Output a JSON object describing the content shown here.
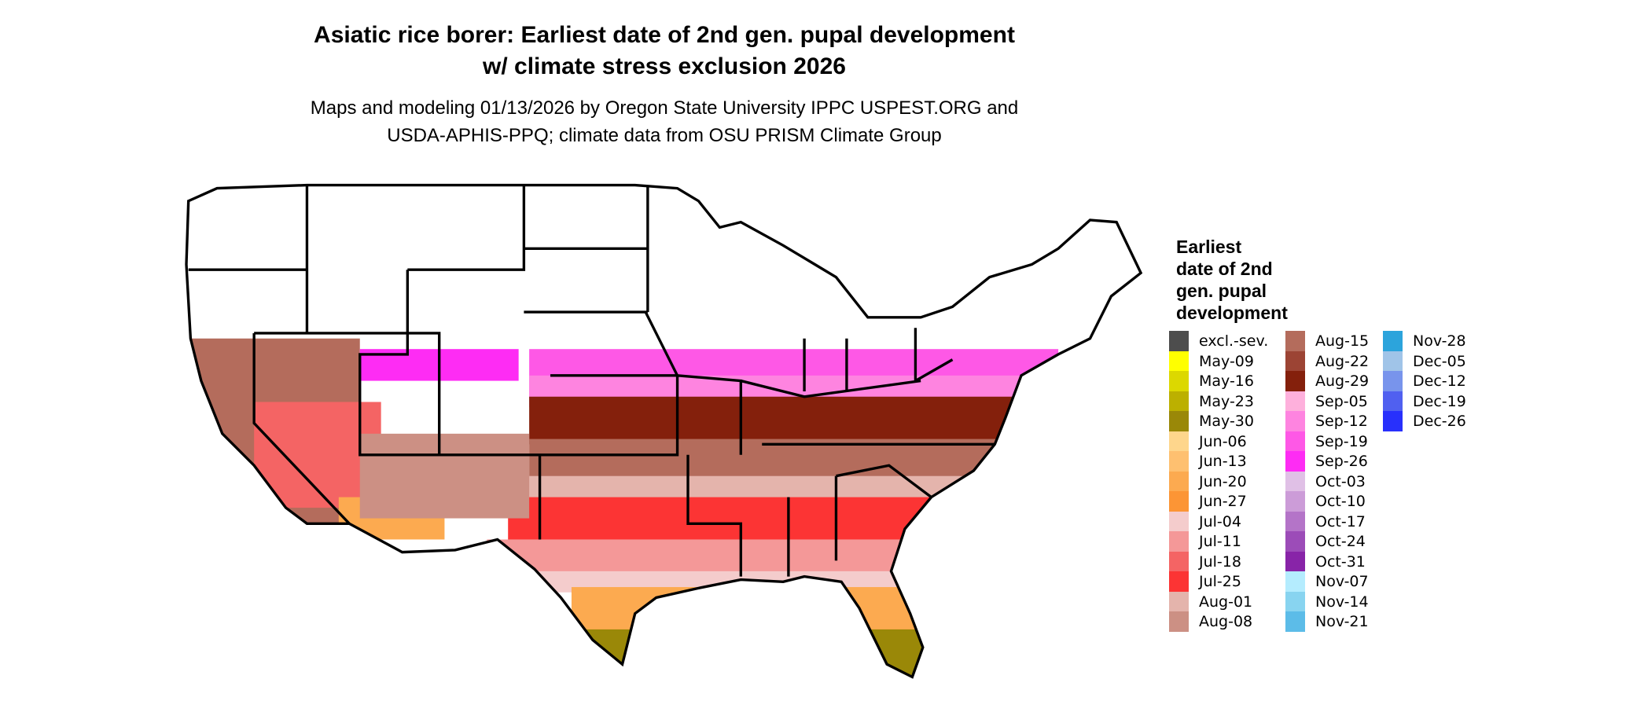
{
  "title_line1": "Asiatic rice borer: Earliest date of 2nd gen. pupal development",
  "title_line2": "w/ climate stress exclusion 2026",
  "subtitle_line1": "Maps and modeling 01/13/2026 by Oregon State University IPPC USPEST.ORG and",
  "subtitle_line2": "USDA-APHIS-PPQ; climate data from OSU PRISM Climate Group",
  "legend": {
    "title_lines": [
      "Earliest",
      "date of 2nd",
      "gen. pupal",
      "development"
    ],
    "items": [
      {
        "label": "excl.-sev.",
        "color": "#4d4d4d"
      },
      {
        "label": "May-09",
        "color": "#ffff00"
      },
      {
        "label": "May-16",
        "color": "#dcd800"
      },
      {
        "label": "May-23",
        "color": "#bcb000"
      },
      {
        "label": "May-30",
        "color": "#9a8808"
      },
      {
        "label": "Jun-06",
        "color": "#fed68c"
      },
      {
        "label": "Jun-13",
        "color": "#fec070"
      },
      {
        "label": "Jun-20",
        "color": "#fcaa50"
      },
      {
        "label": "Jun-27",
        "color": "#fc9535"
      },
      {
        "label": "Jul-04",
        "color": "#f4cccc"
      },
      {
        "label": "Jul-11",
        "color": "#f49898"
      },
      {
        "label": "Jul-18",
        "color": "#f46464"
      },
      {
        "label": "Jul-25",
        "color": "#fc3434"
      },
      {
        "label": "Aug-01",
        "color": "#e4b4ac"
      },
      {
        "label": "Aug-08",
        "color": "#cc9084"
      },
      {
        "label": "Aug-15",
        "color": "#b46c5c"
      },
      {
        "label": "Aug-22",
        "color": "#9c4434"
      },
      {
        "label": "Aug-29",
        "color": "#84200c"
      },
      {
        "label": "Sep-05",
        "color": "#feb0dc"
      },
      {
        "label": "Sep-12",
        "color": "#fe84e0"
      },
      {
        "label": "Sep-19",
        "color": "#fe58e6"
      },
      {
        "label": "Sep-26",
        "color": "#fe2cf4"
      },
      {
        "label": "Oct-03",
        "color": "#e0c0e6"
      },
      {
        "label": "Oct-10",
        "color": "#cc9cd8"
      },
      {
        "label": "Oct-17",
        "color": "#b474c8"
      },
      {
        "label": "Oct-24",
        "color": "#9c4cb8"
      },
      {
        "label": "Oct-31",
        "color": "#8824a8"
      },
      {
        "label": "Nov-07",
        "color": "#b4ecfe"
      },
      {
        "label": "Nov-14",
        "color": "#88d4f0"
      },
      {
        "label": "Nov-21",
        "color": "#5cbce8"
      },
      {
        "label": "Nov-28",
        "color": "#2ca4dc"
      },
      {
        "label": "Dec-05",
        "color": "#a0c4e8"
      },
      {
        "label": "Dec-12",
        "color": "#7894ec"
      },
      {
        "label": "Dec-19",
        "color": "#5060f0"
      },
      {
        "label": "Dec-26",
        "color": "#2830fc"
      }
    ]
  }
}
